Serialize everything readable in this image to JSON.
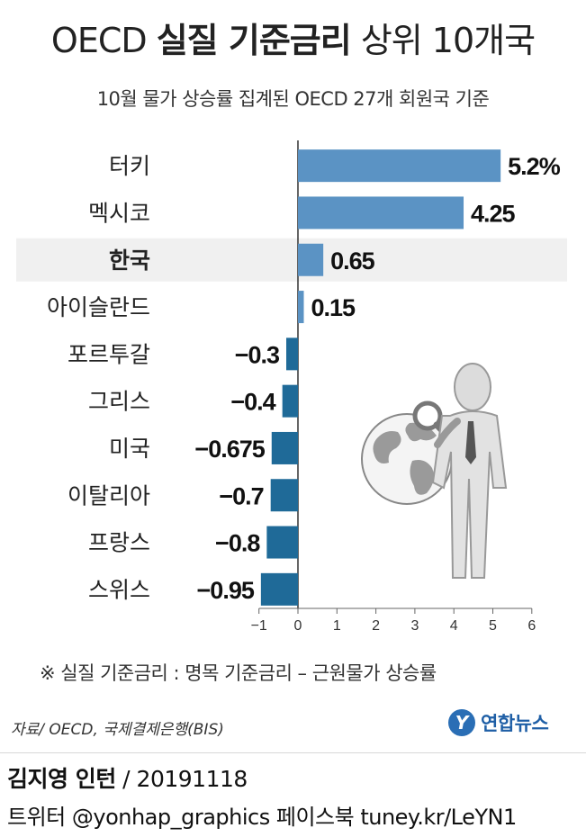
{
  "header": {
    "title_light_1": "OECD",
    "title_bold": "실질 기준금리",
    "title_light_2": "상위 10개국",
    "subtitle": "10월 물가 상승률 집계된 OECD 27개 회원국 기준"
  },
  "chart_data": {
    "type": "bar",
    "orientation": "horizontal",
    "categories": [
      "터키",
      "멕시코",
      "한국",
      "아이슬란드",
      "포르투갈",
      "그리스",
      "미국",
      "이탈리아",
      "프랑스",
      "스위스"
    ],
    "values": [
      5.2,
      4.25,
      0.65,
      0.15,
      -0.3,
      -0.4,
      -0.675,
      -0.7,
      -0.8,
      -0.95
    ],
    "value_labels": [
      "5.2%",
      "4.25",
      "0.65",
      "0.15",
      "−0.3",
      "−0.4",
      "−0.675",
      "−0.7",
      "−0.8",
      "−0.95"
    ],
    "highlight_category": "한국",
    "xlim": [
      -1,
      6
    ],
    "x_ticks": [
      -1,
      0,
      1,
      2,
      3,
      4,
      5,
      6
    ],
    "x_tick_labels": [
      "−1",
      "0",
      "1",
      "2",
      "3",
      "4",
      "5",
      "6"
    ],
    "grid": false,
    "colors": {
      "positive": "#5b93c4",
      "negative": "#1f6a98",
      "highlight_band": "#f0f0f0",
      "axis": "#333333"
    }
  },
  "footnote": "※ 실질 기준금리 : 명목 기준금리 – 근원물가 상승률",
  "source": "자료/ OECD, 국제결제은행(BIS)",
  "logo": {
    "mark": "Y",
    "word": "연합뉴스"
  },
  "credit": {
    "name": "김지영 인턴",
    "date": " / 20191118",
    "social": "트위터 @yonhap_graphics  페이스북 tuney.kr/LeYN1"
  },
  "illustration": {
    "icon": "person-with-magnifier-and-globe-icon"
  }
}
